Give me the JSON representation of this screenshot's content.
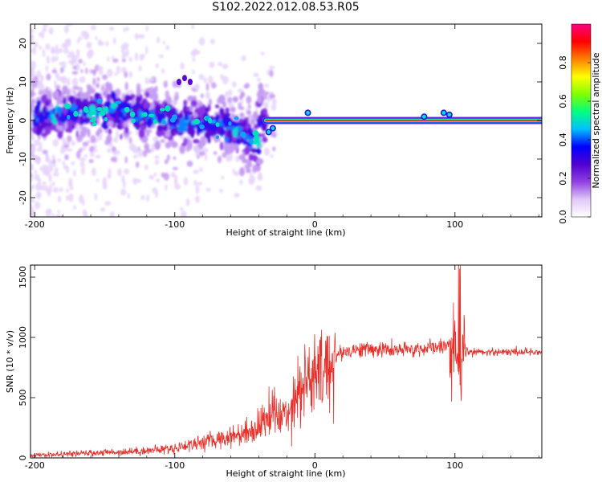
{
  "title": "S102.2022.012.08.53.R05",
  "chart_data": [
    {
      "type": "heatmap",
      "xlabel": "Height of straight line (km)",
      "ylabel": "Frequency (Hz)",
      "xlim": [
        -203,
        162
      ],
      "ylim": [
        -25,
        25
      ],
      "xticks": [
        -200,
        -100,
        0,
        100
      ],
      "yticks": [
        -20,
        -10,
        0,
        10,
        20
      ],
      "colorbar": {
        "label": "Normalized spectral amplitude",
        "range": [
          0,
          1
        ],
        "ticks": [
          "0.0",
          "0.2",
          "0.4",
          "0.6",
          "0.8"
        ],
        "colors": [
          "#ffffff",
          "#e0c8f8",
          "#9040e0",
          "#5000d0",
          "#0000ff",
          "#00c0ff",
          "#00ff80",
          "#80ff00",
          "#ffff00",
          "#ff8000",
          "#ff0000",
          "#ff0080"
        ]
      },
      "features": {
        "carrier_line_start_km": -35,
        "carrier_frequency_hz": 0,
        "scatter_band_center_hz": [
          [
            -200,
            1
          ],
          [
            -150,
            3
          ],
          [
            -100,
            0
          ],
          [
            -60,
            -2
          ],
          [
            -40,
            -6
          ]
        ]
      }
    },
    {
      "type": "line",
      "xlabel": "Height of straight line (km)",
      "ylabel": "SNR (10 * v/v)",
      "xlim": [
        -203,
        162
      ],
      "ylim": [
        0,
        1600
      ],
      "xticks": [
        -200,
        -100,
        0,
        100
      ],
      "yticks": [
        0,
        500,
        1000,
        1500
      ],
      "color": "#e8302a",
      "x": [
        -203,
        -180,
        -160,
        -140,
        -120,
        -100,
        -90,
        -80,
        -70,
        -60,
        -50,
        -40,
        -35,
        -30,
        -25,
        -20,
        -15,
        -10,
        -5,
        0,
        5,
        10,
        15,
        20,
        30,
        40,
        50,
        60,
        70,
        80,
        90,
        95,
        100,
        102,
        104,
        106,
        110,
        120,
        130,
        140,
        150,
        162
      ],
      "values": [
        20,
        30,
        40,
        50,
        60,
        80,
        110,
        130,
        150,
        180,
        210,
        260,
        330,
        400,
        320,
        380,
        500,
        600,
        640,
        660,
        700,
        760,
        840,
        880,
        900,
        900,
        900,
        890,
        900,
        910,
        920,
        940,
        900,
        700,
        500,
        880,
        880,
        880,
        880,
        880,
        880,
        880
      ]
    }
  ]
}
